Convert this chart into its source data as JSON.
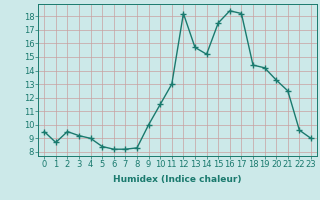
{
  "x": [
    0,
    1,
    2,
    3,
    4,
    5,
    6,
    7,
    8,
    9,
    10,
    11,
    12,
    13,
    14,
    15,
    16,
    17,
    18,
    19,
    20,
    21,
    22,
    23
  ],
  "y": [
    9.5,
    8.7,
    9.5,
    9.2,
    9.0,
    8.4,
    8.2,
    8.2,
    8.3,
    10.0,
    11.5,
    13.0,
    18.2,
    15.7,
    15.2,
    17.5,
    18.4,
    18.2,
    14.4,
    14.2,
    13.3,
    12.5,
    9.6,
    9.0
  ],
  "line_color": "#1a7a6e",
  "bg_color": "#cce9e9",
  "grid_color": "#c8a0a0",
  "xlabel": "Humidex (Indice chaleur)",
  "yticks": [
    8,
    9,
    10,
    11,
    12,
    13,
    14,
    15,
    16,
    17,
    18
  ],
  "ylim": [
    7.7,
    18.9
  ],
  "xlim": [
    -0.5,
    23.5
  ],
  "xlabel_fontsize": 6.5,
  "tick_fontsize": 6,
  "marker": "+",
  "marker_size": 4,
  "linewidth": 1.0
}
